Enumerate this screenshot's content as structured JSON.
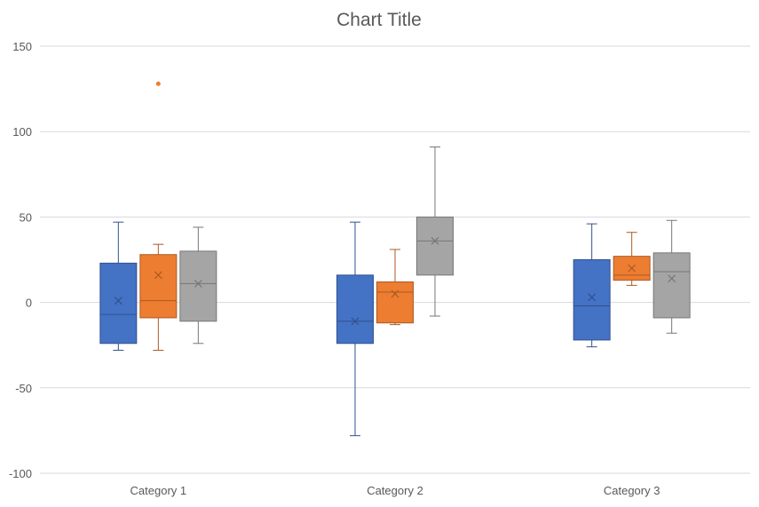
{
  "chart_data": {
    "type": "box",
    "title": "Chart Title",
    "xlabel": "",
    "ylabel": "",
    "ylim": [
      -100,
      150
    ],
    "yticks": [
      -100,
      -50,
      0,
      50,
      100,
      150
    ],
    "ytick_labels": [
      "-100",
      "-50",
      "0",
      "50",
      "100",
      "150"
    ],
    "grid": true,
    "legend": "none",
    "categories": [
      "Category 1",
      "Category 2",
      "Category 3"
    ],
    "series": [
      {
        "color": "#4472C4",
        "boxes": [
          {
            "min": -28,
            "q1": -24,
            "median": -7,
            "q3": 23,
            "max": 47,
            "mean": 1,
            "outliers": []
          },
          {
            "min": -78,
            "q1": -24,
            "median": -11,
            "q3": 16,
            "max": 47,
            "mean": -11,
            "outliers": []
          },
          {
            "min": -26,
            "q1": -22,
            "median": -2,
            "q3": 25,
            "max": 46,
            "mean": 3,
            "outliers": []
          }
        ]
      },
      {
        "color": "#ED7D31",
        "boxes": [
          {
            "min": -28,
            "q1": -9,
            "median": 1,
            "q3": 28,
            "max": 34,
            "mean": 16,
            "outliers": [
              128
            ]
          },
          {
            "min": -13,
            "q1": -12,
            "median": 6,
            "q3": 12,
            "max": 31,
            "mean": 5,
            "outliers": []
          },
          {
            "min": 10,
            "q1": 13,
            "median": 16,
            "q3": 27,
            "max": 41,
            "mean": 20,
            "outliers": []
          }
        ]
      },
      {
        "color": "#A5A5A5",
        "boxes": [
          {
            "min": -24,
            "q1": -11,
            "median": 11,
            "q3": 30,
            "max": 44,
            "mean": 11,
            "outliers": []
          },
          {
            "min": -8,
            "q1": 16,
            "median": 36,
            "q3": 50,
            "max": 91,
            "mean": 36,
            "outliers": []
          },
          {
            "min": -18,
            "q1": -9,
            "median": 18,
            "q3": 29,
            "max": 48,
            "mean": 14,
            "outliers": []
          }
        ]
      }
    ]
  }
}
